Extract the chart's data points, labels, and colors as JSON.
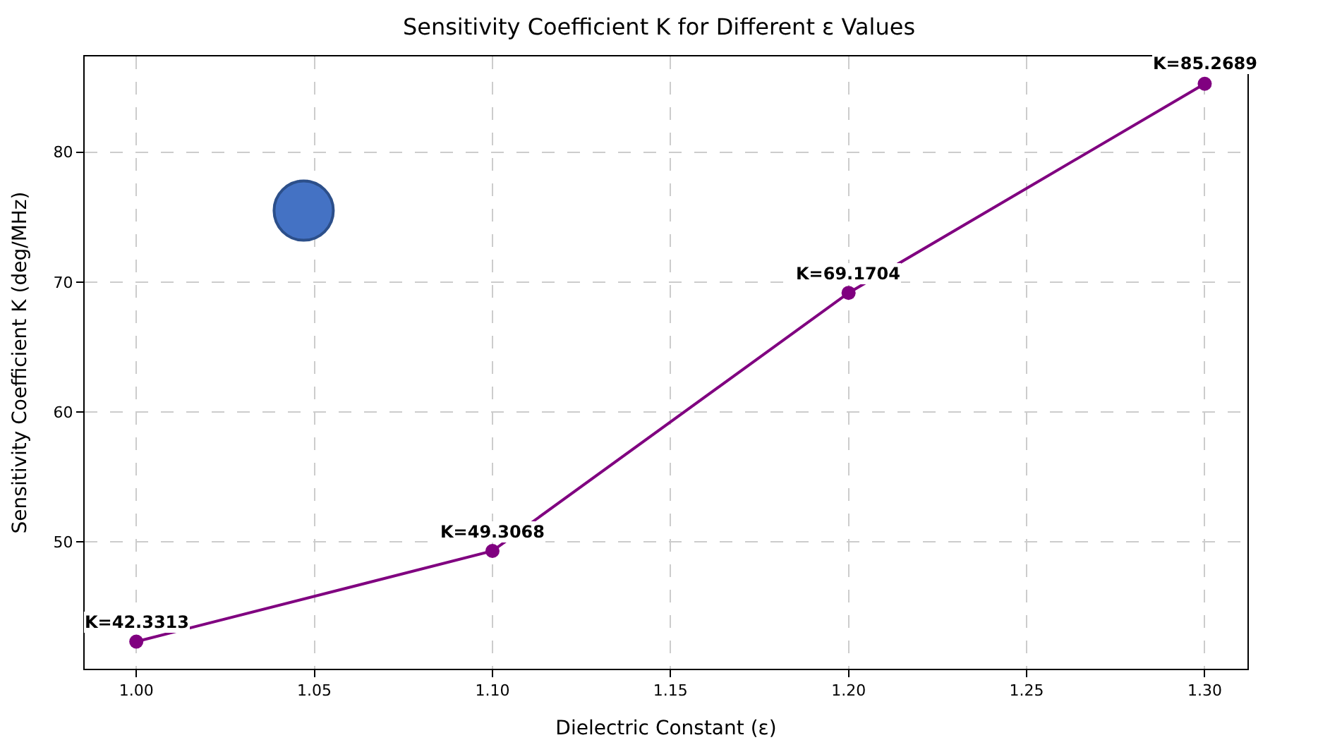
{
  "chart_data": {
    "type": "line",
    "title": "Sensitivity Coefficient K for Different ε Values",
    "xlabel": "Dielectric Constant (ε)",
    "ylabel": "Sensitivity Coefficient K (deg/MHz)",
    "xlim": [
      0.9855,
      1.312
    ],
    "xticks": [
      {
        "value": 1.0,
        "label": "1.00"
      },
      {
        "value": 1.05,
        "label": "1.05"
      },
      {
        "value": 1.1,
        "label": "1.10"
      },
      {
        "value": 1.15,
        "label": "1.15"
      },
      {
        "value": 1.2,
        "label": "1.20"
      },
      {
        "value": 1.25,
        "label": "1.25"
      },
      {
        "value": 1.3,
        "label": "1.30"
      }
    ],
    "ylim": [
      40.24,
      87.37
    ],
    "yticks": [
      50,
      60,
      70,
      80
    ],
    "grid": true,
    "legend": false,
    "marker": "circle",
    "line_style": "solid",
    "series": [
      {
        "color": "#800080",
        "x": [
          1.0,
          1.1,
          1.2,
          1.3
        ],
        "values": [
          42.3313,
          49.3068,
          69.1704,
          85.2689
        ],
        "value_labels": [
          "K=42.3313",
          "K=49.3068",
          "K=69.1704",
          "K=85.2689"
        ]
      },
      {
        "type": "scatter",
        "color": "#4472c4",
        "x": [
          1.047
        ],
        "values": [
          75.5
        ]
      }
    ]
  }
}
